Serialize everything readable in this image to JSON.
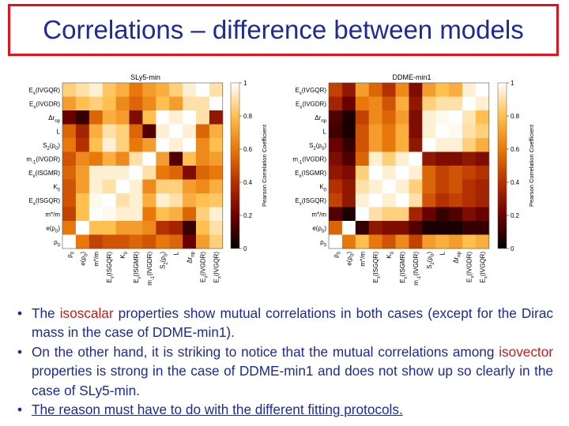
{
  "title": "Correlations – difference between models",
  "chart_data": [
    {
      "type": "heatmap",
      "title": "SLy5-min",
      "colorbar_label": "Pearson Correlation Coefficient",
      "colorbar_ticks": [
        "1",
        "0.8",
        "0.6",
        "0.4",
        "0.2",
        "0"
      ],
      "colorscale": [
        "#000000",
        "#6b0000",
        "#b53000",
        "#e8780a",
        "#ffc050",
        "#ffffff"
      ],
      "row_labels": [
        "E_x(IVGQR)",
        "E_x(IVGDR)",
        "Δr_np",
        "L",
        "S_2(ρ_0)",
        "m_-1(IVGDR)",
        "E_x(ISGMR)",
        "K_0",
        "E_x(ISGQR)",
        "m*/m",
        "e(ρ_0)",
        "ρ_0"
      ],
      "col_labels": [
        "ρ_0",
        "e(ρ_0)",
        "m*/m",
        "E_x(ISGQR)",
        "K_0",
        "E_x(ISGMR)",
        "m_-1(IVGDR)",
        "S_2(ρ_0)",
        "L",
        "Δr_np",
        "E_x(IVGDR)",
        "E_x(IVGQR)"
      ],
      "z": [
        [
          0.85,
          0.9,
          0.95,
          0.82,
          0.75,
          0.6,
          0.7,
          0.75,
          0.85,
          0.95,
          1.0,
          0.9
        ],
        [
          0.7,
          0.8,
          0.85,
          0.8,
          0.65,
          0.55,
          0.65,
          0.8,
          0.7,
          0.9,
          0.9,
          1.0
        ],
        [
          0.2,
          0.1,
          0.55,
          0.75,
          0.7,
          0.25,
          0.8,
          1.0,
          0.95,
          1.0,
          0.9,
          0.3
        ],
        [
          0.55,
          0.35,
          0.75,
          0.9,
          0.85,
          0.55,
          0.15,
          0.95,
          1.0,
          0.95,
          0.55,
          0.75
        ],
        [
          0.6,
          0.4,
          0.8,
          0.95,
          0.85,
          0.6,
          0.7,
          1.0,
          0.95,
          1.0,
          0.65,
          0.8
        ],
        [
          0.5,
          0.65,
          0.6,
          0.75,
          0.65,
          0.9,
          1.0,
          0.7,
          0.15,
          0.8,
          0.65,
          0.7
        ],
        [
          0.55,
          0.7,
          0.95,
          0.95,
          0.95,
          1.0,
          0.9,
          0.6,
          0.55,
          0.25,
          0.55,
          0.6
        ],
        [
          0.5,
          0.7,
          0.95,
          0.9,
          1.0,
          0.95,
          0.65,
          0.85,
          0.85,
          0.7,
          0.65,
          0.75
        ],
        [
          0.5,
          0.8,
          0.98,
          1.0,
          0.9,
          0.95,
          0.75,
          0.95,
          0.9,
          0.75,
          0.8,
          0.82
        ],
        [
          0.45,
          0.8,
          1.0,
          0.98,
          0.95,
          0.95,
          0.6,
          0.8,
          0.75,
          0.55,
          0.85,
          0.95
        ],
        [
          0.6,
          1.0,
          0.8,
          0.8,
          0.7,
          0.7,
          0.65,
          0.4,
          0.35,
          0.1,
          0.8,
          0.9
        ],
        [
          1.0,
          0.6,
          0.45,
          0.5,
          0.5,
          0.55,
          0.5,
          0.6,
          0.55,
          0.2,
          0.7,
          0.85
        ]
      ]
    },
    {
      "type": "heatmap",
      "title": "DDME-min1",
      "colorbar_label": "Pearson Correlation Coefficient",
      "colorbar_ticks": [
        "1",
        "0.8",
        "0.6",
        "0.4",
        "0.2",
        "0"
      ],
      "colorscale": [
        "#000000",
        "#6b0000",
        "#b53000",
        "#e8780a",
        "#ffc050",
        "#ffffff"
      ],
      "row_labels": [
        "E_x(IVGQR)",
        "E_x(IVGDR)",
        "Δr_np",
        "L",
        "S_2(ρ_0)",
        "m_-1(IVGDR)",
        "E_x(ISGMR)",
        "K_0",
        "E_x(ISGQR)",
        "m*/m",
        "e(ρ_0)",
        "ρ_0"
      ],
      "col_labels": [
        "ρ_0",
        "e(ρ_0)",
        "m*/m",
        "E_x(ISGQR)",
        "K_0",
        "E_x(ISGMR)",
        "m_-1(IVGDR)",
        "S_2(ρ_0)",
        "L",
        "Δr_np",
        "E_x(IVGDR)",
        "E_x(IVGQR)"
      ],
      "z": [
        [
          0.45,
          0.3,
          0.7,
          0.55,
          0.4,
          0.65,
          0.25,
          0.7,
          0.8,
          0.75,
          0.95,
          1.0
        ],
        [
          0.35,
          0.2,
          0.6,
          0.65,
          0.5,
          0.75,
          0.3,
          0.85,
          0.9,
          0.9,
          1.0,
          0.95
        ],
        [
          0.15,
          0.05,
          0.45,
          0.65,
          0.55,
          0.7,
          0.25,
          0.95,
          0.98,
          1.0,
          0.92,
          0.8
        ],
        [
          0.12,
          0.05,
          0.5,
          0.7,
          0.6,
          0.75,
          0.25,
          0.95,
          1.0,
          0.98,
          0.9,
          0.85
        ],
        [
          0.2,
          0.1,
          0.5,
          0.7,
          0.6,
          0.75,
          0.3,
          1.0,
          0.95,
          0.95,
          0.85,
          0.75
        ],
        [
          0.25,
          0.15,
          0.55,
          0.95,
          0.85,
          0.95,
          1.0,
          0.3,
          0.25,
          0.25,
          0.3,
          0.25
        ],
        [
          0.3,
          0.25,
          0.85,
          1.0,
          0.95,
          1.0,
          0.95,
          0.55,
          0.45,
          0.5,
          0.45,
          0.4
        ],
        [
          0.4,
          0.3,
          0.9,
          0.95,
          1.0,
          0.95,
          0.85,
          0.55,
          0.45,
          0.5,
          0.4,
          0.35
        ],
        [
          0.45,
          0.3,
          0.95,
          1.0,
          0.95,
          1.0,
          0.9,
          0.5,
          0.4,
          0.45,
          0.4,
          0.35
        ],
        [
          0.15,
          0.05,
          1.0,
          0.9,
          0.85,
          0.85,
          0.35,
          0.2,
          0.1,
          0.15,
          0.25,
          0.2
        ],
        [
          0.55,
          1.0,
          0.1,
          0.3,
          0.25,
          0.25,
          0.15,
          0.05,
          0.05,
          0.05,
          0.1,
          0.1
        ],
        [
          1.0,
          0.6,
          0.8,
          0.6,
          0.5,
          0.65,
          0.45,
          0.7,
          0.75,
          0.7,
          0.8,
          0.75
        ]
      ]
    }
  ],
  "bullets": {
    "b1_pre": "The ",
    "b1_hl": "isoscalar",
    "b1_post": " properties show mutual correlations in both cases (except for the Dirac mass in the case of DDME-min1).",
    "b2_pre": "On the other hand, it is striking to notice that the mutual correlations among ",
    "b2_hl": "isovector",
    "b2_post": " properties is strong in the case of DDME-min1 and does not show up so clearly in the case of SLy5-min.",
    "b3": "The reason must have to do with the different fitting protocols."
  }
}
